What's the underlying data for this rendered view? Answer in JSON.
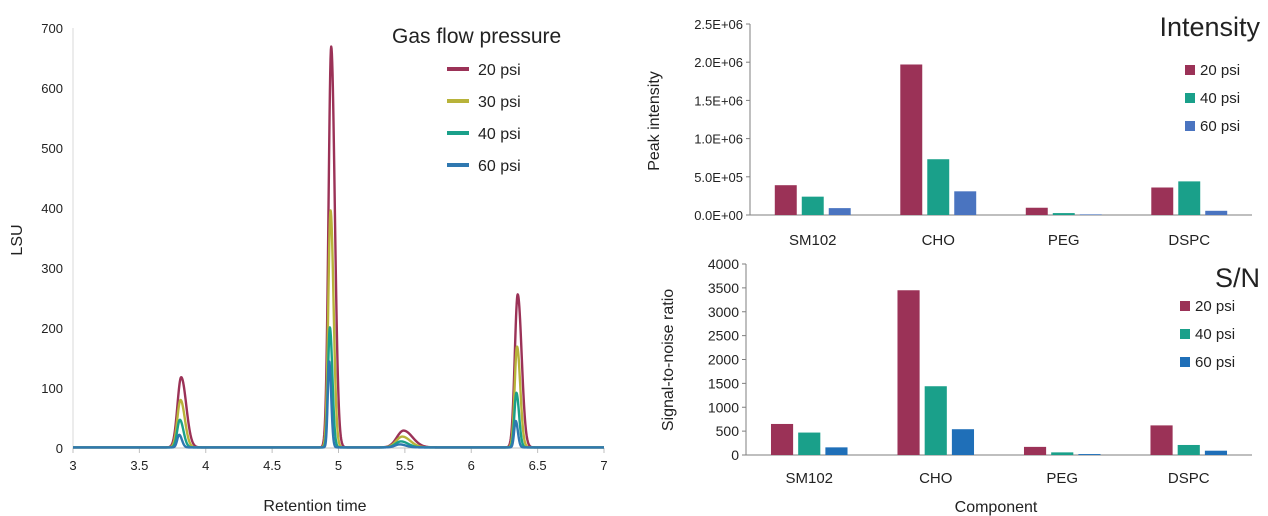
{
  "chart_data": [
    {
      "type": "line",
      "xlabel": "Retention time",
      "ylabel": "LSU",
      "xlim": [
        3,
        7
      ],
      "ylim": [
        0,
        700
      ],
      "x_ticks": [
        "3",
        "3.5",
        "4",
        "4.5",
        "5",
        "5.5",
        "6",
        "6.5",
        "7"
      ],
      "y_ticks": [
        "0",
        "100",
        "200",
        "300",
        "400",
        "500",
        "600",
        "700"
      ],
      "legend_title": "Gas flow pressure",
      "legend_position": "top-right",
      "grid": false,
      "series": [
        {
          "name": "20 psi",
          "color": "#9b3257",
          "baseline": 1,
          "peaks": [
            {
              "x": 3.815,
              "h": 117,
              "w": 0.028
            },
            {
              "x": 4.945,
              "h": 668,
              "w": 0.02
            },
            {
              "x": 5.49,
              "h": 28,
              "w": 0.05
            },
            {
              "x": 6.35,
              "h": 255,
              "w": 0.022
            }
          ]
        },
        {
          "name": "30 psi",
          "color": "#b8b33a",
          "baseline": 1,
          "peaks": [
            {
              "x": 3.81,
              "h": 79,
              "w": 0.024
            },
            {
              "x": 4.94,
              "h": 395,
              "w": 0.017
            },
            {
              "x": 5.48,
              "h": 18,
              "w": 0.045
            },
            {
              "x": 6.345,
              "h": 168,
              "w": 0.018
            }
          ]
        },
        {
          "name": "40 psi",
          "color": "#1aa08a",
          "baseline": 1,
          "peaks": [
            {
              "x": 3.805,
              "h": 46,
              "w": 0.02
            },
            {
              "x": 4.935,
              "h": 200,
              "w": 0.014
            },
            {
              "x": 5.47,
              "h": 10,
              "w": 0.04
            },
            {
              "x": 6.34,
              "h": 91,
              "w": 0.015
            }
          ]
        },
        {
          "name": "60 psi",
          "color": "#2f78b0",
          "baseline": 1,
          "peaks": [
            {
              "x": 3.8,
              "h": 21,
              "w": 0.015
            },
            {
              "x": 4.93,
              "h": 143,
              "w": 0.011
            },
            {
              "x": 5.46,
              "h": 5,
              "w": 0.035
            },
            {
              "x": 6.335,
              "h": 44,
              "w": 0.012
            }
          ]
        }
      ]
    },
    {
      "type": "bar",
      "title": "Intensity",
      "ylabel": "Peak intensity",
      "categories": [
        "SM102",
        "CHO",
        "PEG",
        "DSPC"
      ],
      "ylim": [
        0,
        2500000
      ],
      "y_ticks": [
        {
          "v": 0,
          "label": "0.0E+00"
        },
        {
          "v": 500000,
          "label": "5.0E+05"
        },
        {
          "v": 1000000,
          "label": "1.0E+06"
        },
        {
          "v": 1500000,
          "label": "1.5E+06"
        },
        {
          "v": 2000000,
          "label": "2.0E+06"
        },
        {
          "v": 2500000,
          "label": "2.5E+06"
        }
      ],
      "legend_position": "top-right",
      "series": [
        {
          "name": "20 psi",
          "color": "#9b3257",
          "values": [
            390000,
            1970000,
            95000,
            360000
          ]
        },
        {
          "name": "40 psi",
          "color": "#1aa08a",
          "values": [
            240000,
            730000,
            25000,
            440000
          ]
        },
        {
          "name": "60 psi",
          "color": "#4a74c0",
          "values": [
            90000,
            310000,
            8000,
            55000
          ]
        }
      ]
    },
    {
      "type": "bar",
      "title": "S/N",
      "ylabel": "Signal-to-noise ratio",
      "xlabel": "Component",
      "categories": [
        "SM102",
        "CHO",
        "PEG",
        "DSPC"
      ],
      "ylim": [
        0,
        4000
      ],
      "y_ticks": [
        {
          "v": 0,
          "label": "0"
        },
        {
          "v": 500,
          "label": "500"
        },
        {
          "v": 1000,
          "label": "1000"
        },
        {
          "v": 1500,
          "label": "1500"
        },
        {
          "v": 2000,
          "label": "2000"
        },
        {
          "v": 2500,
          "label": "2500"
        },
        {
          "v": 3000,
          "label": "3000"
        },
        {
          "v": 3500,
          "label": "3500"
        },
        {
          "v": 4000,
          "label": "4000"
        }
      ],
      "legend_position": "top-right",
      "series": [
        {
          "name": "20 psi",
          "color": "#9b3257",
          "values": [
            650,
            3450,
            170,
            620
          ]
        },
        {
          "name": "40 psi",
          "color": "#1aa08a",
          "values": [
            470,
            1440,
            55,
            210
          ]
        },
        {
          "name": "60 psi",
          "color": "#1f6fb8",
          "values": [
            160,
            540,
            20,
            90
          ]
        }
      ]
    }
  ]
}
